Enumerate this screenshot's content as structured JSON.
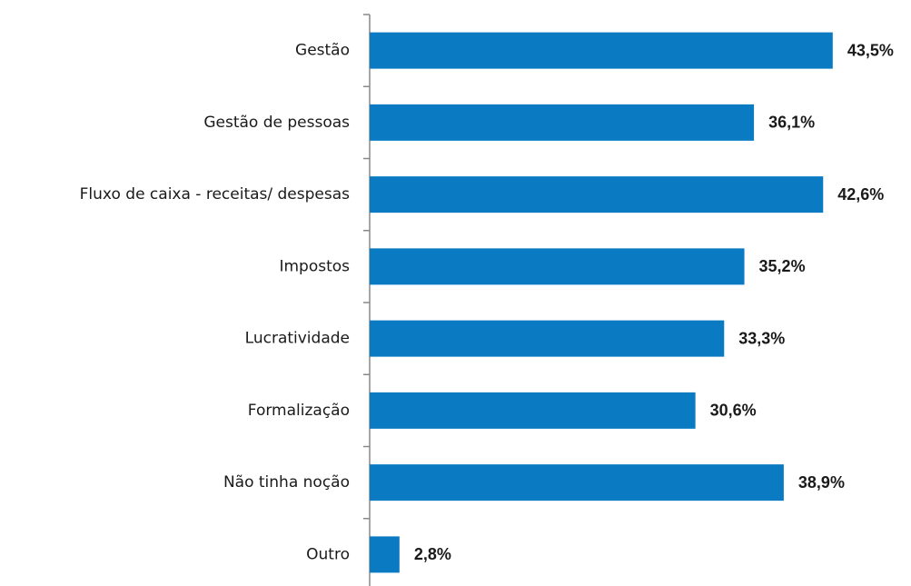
{
  "chart_data": {
    "type": "barh",
    "categories": [
      "Gestão",
      "Gestão de pessoas",
      "Fluxo de caixa - receitas/ despesas",
      "Impostos",
      "Lucratividade",
      "Formalização",
      "Não tinha noção",
      "Outro"
    ],
    "values": [
      43.5,
      36.1,
      42.6,
      35.2,
      33.3,
      30.6,
      38.9,
      2.8
    ],
    "value_labels": [
      "43,5%",
      "36,1%",
      "42,6%",
      "35,2%",
      "33,3%",
      "30,6%",
      "38,9%",
      "2,8%"
    ],
    "color": "#0a7bc2",
    "xlim": [
      0,
      50
    ]
  }
}
